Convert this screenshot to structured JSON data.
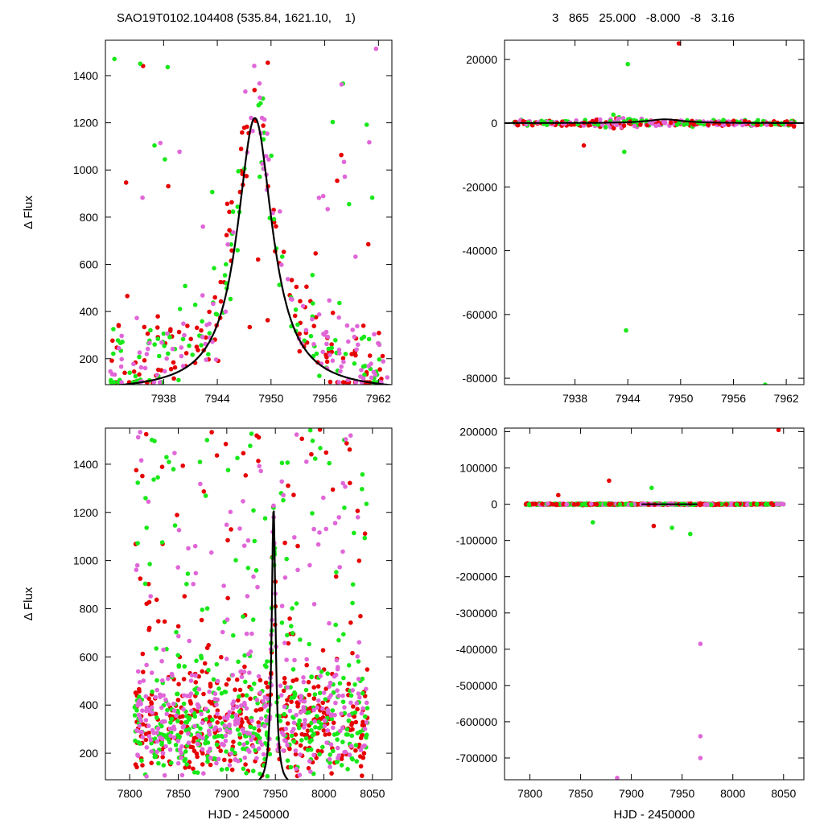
{
  "header": {
    "left": "SAO19T0102.104408 (535.84, 1621.10,    1)",
    "right": "3   865   25.000   -8.000   -8   3.16"
  },
  "colors": {
    "red": "#e60000",
    "green": "#18e818",
    "pink": "#e066d8",
    "model": "#000000"
  },
  "chart_data": [
    {
      "type": "scatter",
      "panel": "top-left",
      "ylabel": "Δ Flux",
      "xlabel": "",
      "xlim": [
        7931.5,
        7963.5
      ],
      "ylim": [
        90,
        1550
      ],
      "xticks": [
        7938,
        7944,
        7950,
        7956,
        7962
      ],
      "yticks": [
        200,
        400,
        600,
        800,
        1000,
        1200,
        1400
      ],
      "model": {
        "type": "lorentzian",
        "t0": 7948.2,
        "peak": 1220,
        "width": 2.4,
        "base": 60
      },
      "series": [
        {
          "color": "red",
          "n": 150,
          "x_range": [
            7932,
            7963
          ],
          "y_range": [
            100,
            1550
          ]
        },
        {
          "color": "green",
          "n": 130,
          "x_range": [
            7932,
            7963
          ],
          "y_range": [
            100,
            1550
          ]
        },
        {
          "color": "pink",
          "n": 130,
          "x_range": [
            7932,
            7963
          ],
          "y_range": [
            100,
            1550
          ]
        }
      ]
    },
    {
      "type": "scatter",
      "panel": "top-right",
      "ylabel": "",
      "xlabel": "",
      "xlim": [
        7930,
        7964
      ],
      "ylim": [
        -82000,
        26000
      ],
      "xticks": [
        7938,
        7944,
        7950,
        7956,
        7962
      ],
      "yticks": [
        20000,
        0,
        -20000,
        -40000,
        -60000,
        -80000
      ],
      "outliers": [
        {
          "x": 7949.8,
          "y": 25000,
          "color": "red"
        },
        {
          "x": 7944.0,
          "y": 18500,
          "color": "green"
        },
        {
          "x": 7943.8,
          "y": -65000,
          "color": "green"
        },
        {
          "x": 7959.6,
          "y": -82000,
          "color": "green"
        },
        {
          "x": 7943.6,
          "y": -9000,
          "color": "green"
        },
        {
          "x": 7939.0,
          "y": -7000,
          "color": "red"
        }
      ]
    },
    {
      "type": "scatter",
      "panel": "bottom-left",
      "ylabel": "Δ Flux",
      "xlabel": "HJD - 2450000",
      "xlim": [
        7775,
        8070
      ],
      "ylim": [
        90,
        1550
      ],
      "xticks": [
        7800,
        7850,
        7900,
        7950,
        8000,
        8050
      ],
      "yticks": [
        200,
        400,
        600,
        800,
        1000,
        1200,
        1400
      ],
      "model": {
        "type": "lorentzian",
        "t0": 7948.2,
        "peak": 1220,
        "width": 2.4,
        "base": 60
      },
      "series": [
        {
          "color": "red",
          "n": 420,
          "x_range": [
            7805,
            8045
          ],
          "y_range": [
            100,
            1550
          ]
        },
        {
          "color": "green",
          "n": 420,
          "x_range": [
            7805,
            8045
          ],
          "y_range": [
            100,
            1550
          ]
        },
        {
          "color": "pink",
          "n": 380,
          "x_range": [
            7805,
            8045
          ],
          "y_range": [
            100,
            1550
          ]
        }
      ]
    },
    {
      "type": "scatter",
      "panel": "bottom-right",
      "ylabel": "",
      "xlabel": "HJD - 2450000",
      "xlim": [
        7775,
        8070
      ],
      "ylim": [
        -760000,
        210000
      ],
      "xticks": [
        7800,
        7850,
        7900,
        7950,
        8000,
        8050
      ],
      "yticks": [
        200000,
        100000,
        0,
        -100000,
        -200000,
        -300000,
        -400000,
        -500000,
        -600000,
        -700000
      ],
      "outliers": [
        {
          "x": 8045,
          "y": 205000,
          "color": "red"
        },
        {
          "x": 7878,
          "y": 65000,
          "color": "red"
        },
        {
          "x": 7968,
          "y": -385000,
          "color": "pink"
        },
        {
          "x": 7968,
          "y": -640000,
          "color": "pink"
        },
        {
          "x": 7968,
          "y": -700000,
          "color": "pink"
        },
        {
          "x": 7886,
          "y": -755000,
          "color": "pink"
        },
        {
          "x": 7958,
          "y": -82000,
          "color": "green"
        },
        {
          "x": 7940,
          "y": -65000,
          "color": "green"
        },
        {
          "x": 7862,
          "y": -50000,
          "color": "green"
        },
        {
          "x": 7920,
          "y": 45000,
          "color": "green"
        },
        {
          "x": 7922,
          "y": -60000,
          "color": "red"
        },
        {
          "x": 7828,
          "y": 25000,
          "color": "red"
        }
      ]
    }
  ]
}
